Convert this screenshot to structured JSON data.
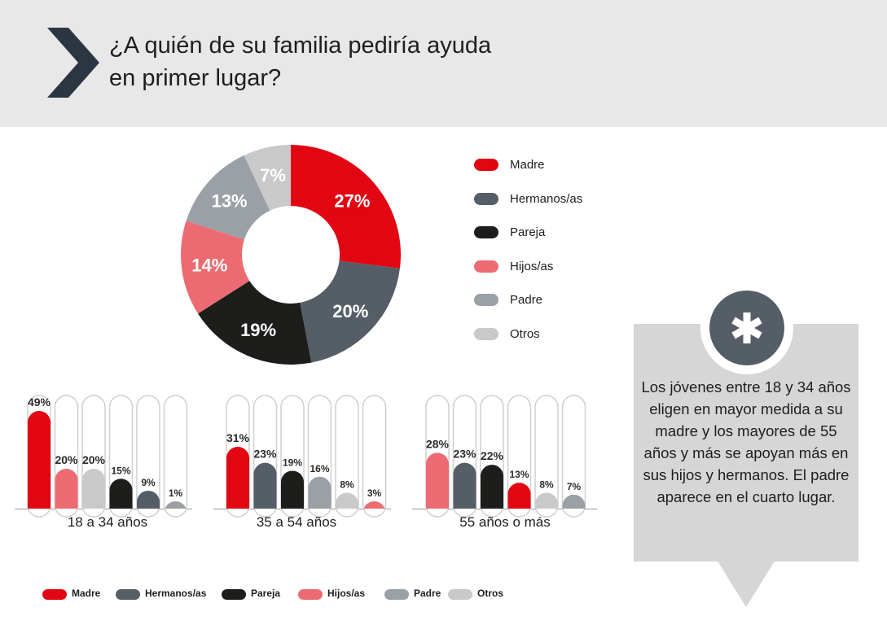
{
  "header": {
    "title_line1": "¿A quién de su familia pediría ayuda",
    "title_line2": "en primer lugar?"
  },
  "colors": {
    "Madre": "#e20613",
    "Hermanos/as": "#555e66",
    "Pareja": "#1d1d1b",
    "Hijos/as": "#ec6b72",
    "Padre": "#9aa0a5",
    "Otros": "#c9c9c9"
  },
  "legend": [
    "Madre",
    "Hermanos/as",
    "Pareja",
    "Hijos/as",
    "Padre",
    "Otros"
  ],
  "chart_data": [
    {
      "type": "pie",
      "title": "",
      "categories": [
        "Madre",
        "Hermanos/as",
        "Pareja",
        "Hijos/as",
        "Padre",
        "Otros"
      ],
      "values": [
        27,
        20,
        19,
        14,
        13,
        7
      ],
      "labels": [
        "27%",
        "20%",
        "19%",
        "14%",
        "13%",
        "7%"
      ],
      "legend_position": "right"
    },
    {
      "type": "bar",
      "title": "",
      "groups": [
        "18 a 34 años",
        "35 a 54 años",
        "55 años o más"
      ],
      "ylim": [
        0,
        50
      ],
      "series_by_group": [
        {
          "group": "18 a 34 años",
          "bars": [
            {
              "category": "Madre",
              "value": 49,
              "label": "49%"
            },
            {
              "category": "Hijos/as",
              "value": 20,
              "label": "20%"
            },
            {
              "category": "Otros",
              "value": 20,
              "label": "20%"
            },
            {
              "category": "Pareja",
              "value": 15,
              "label": "15%"
            },
            {
              "category": "Hermanos/as",
              "value": 9,
              "label": "9%"
            },
            {
              "category": "Padre",
              "value": 1,
              "label": "1%"
            }
          ]
        },
        {
          "group": "35 a 54 años",
          "bars": [
            {
              "category": "Madre",
              "value": 31,
              "label": "31%"
            },
            {
              "category": "Hermanos/as",
              "value": 23,
              "label": "23%"
            },
            {
              "category": "Pareja",
              "value": 19,
              "label": "19%"
            },
            {
              "category": "Padre",
              "value": 16,
              "label": "16%"
            },
            {
              "category": "Otros",
              "value": 8,
              "label": "8%"
            },
            {
              "category": "Hijos/as",
              "value": 3,
              "label": "3%"
            }
          ]
        },
        {
          "group": "55 años o más",
          "bars": [
            {
              "category": "Hijos/as",
              "value": 28,
              "label": "28%"
            },
            {
              "category": "Hermanos/as",
              "value": 23,
              "label": "23%"
            },
            {
              "category": "Pareja",
              "value": 22,
              "label": "22%"
            },
            {
              "category": "Madre",
              "value": 13,
              "label": "13%"
            },
            {
              "category": "Otros",
              "value": 8,
              "label": "8%"
            },
            {
              "category": "Padre",
              "value": 7,
              "label": "7%"
            }
          ]
        }
      ],
      "legend_position": "bottom"
    }
  ],
  "note": {
    "icon": "asterisk-icon",
    "text": "Los jóvenes entre 18 y 34 años eligen en mayor medida a su madre y los mayores de 55 años y más  se apoyan más en sus hijos y hermanos. El padre aparece en el cuarto lugar."
  }
}
